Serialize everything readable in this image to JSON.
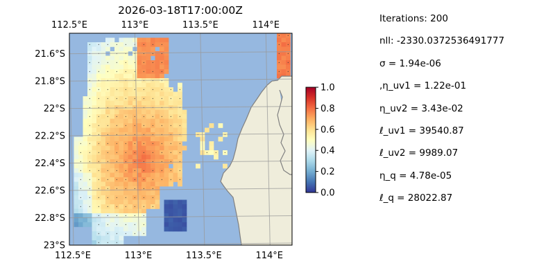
{
  "title": "2026-03-18T17:00:00Z",
  "map": {
    "lon_range": [
      112.5,
      114.2
    ],
    "lat_range": [
      -23.0,
      -21.45
    ],
    "x_ticks": [
      {
        "value": 112.5,
        "label": "112.5°E"
      },
      {
        "value": 113.0,
        "label": "113°E"
      },
      {
        "value": 113.5,
        "label": "113.5°E"
      },
      {
        "value": 114.0,
        "label": "114°E"
      }
    ],
    "y_ticks": [
      {
        "value": -21.6,
        "label": "21.6°S"
      },
      {
        "value": -21.8,
        "label": "21.8°S"
      },
      {
        "value": -22.0,
        "label": "22°S"
      },
      {
        "value": -22.2,
        "label": "22.2°S"
      },
      {
        "value": -22.4,
        "label": "22.4°S"
      },
      {
        "value": -22.6,
        "label": "22.6°S"
      },
      {
        "value": -22.8,
        "label": "22.8°S"
      },
      {
        "value": -23.0,
        "label": "23°S"
      }
    ],
    "ocean_color": "#96b8e0",
    "land_color": "#efeddb",
    "coast_color": "#808080",
    "gridlines": true
  },
  "colorbar": {
    "colormap": "RdYlBu_r",
    "range": [
      0.0,
      1.0
    ],
    "ticks": [
      {
        "value": 0.0,
        "label": "0.0"
      },
      {
        "value": 0.2,
        "label": "0.2"
      },
      {
        "value": 0.4,
        "label": "0.4"
      },
      {
        "value": 0.6,
        "label": "0.6"
      },
      {
        "value": 0.8,
        "label": "0.8"
      },
      {
        "value": 1.0,
        "label": "1.0"
      }
    ]
  },
  "params": [
    {
      "id": "iterations",
      "text": "Iterations: 200"
    },
    {
      "id": "nll",
      "text": "nll: -2330.0372536491777"
    },
    {
      "id": "sigma",
      "text": "σ = 1.94e-06"
    },
    {
      "id": "eta-uv1",
      "text": ",η_uv1 = 1.22e-01"
    },
    {
      "id": "eta-uv2",
      "text": "η_uv2 = 3.43e-02"
    },
    {
      "id": "ell-uv1",
      "text": "ℓ_uv1 = 39540.87"
    },
    {
      "id": "ell-uv2",
      "text": "ℓ_uv2 = 9989.07"
    },
    {
      "id": "eta-q",
      "text": "η_q = 4.78e-05"
    },
    {
      "id": "ell-q",
      "text": "ℓ_q = 28022.87"
    }
  ]
}
